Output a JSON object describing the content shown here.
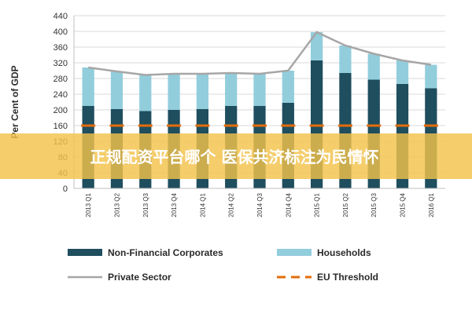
{
  "banner": {
    "text": "正规配资平台哪个 医保共济标注为民情怀"
  },
  "chart_data": {
    "type": "bar",
    "title": "",
    "xlabel": "",
    "ylabel": "Per Cent of GDP",
    "ylim": [
      0,
      440
    ],
    "yticks": [
      0,
      40,
      80,
      120,
      160,
      200,
      240,
      280,
      320,
      360,
      400,
      440
    ],
    "grid": true,
    "legend_position": "bottom",
    "stacked": true,
    "categories": [
      "2013 Q1",
      "2013 Q2",
      "2013 Q3",
      "2013 Q4",
      "2014 Q1",
      "2014 Q2",
      "2014 Q3",
      "2014 Q4",
      "2015 Q1",
      "2015 Q2",
      "2015 Q3",
      "2015 Q4",
      "2016 Q1"
    ],
    "series": [
      {
        "name": "Non-Financial Corporates",
        "kind": "bar",
        "color": "#1f4e5e",
        "values": [
          210,
          202,
          197,
          200,
          202,
          210,
          210,
          218,
          326,
          294,
          277,
          266,
          255
        ]
      },
      {
        "name": "Households",
        "kind": "bar",
        "color": "#92cddc",
        "values": [
          98,
          96,
          92,
          92,
          90,
          84,
          82,
          82,
          72,
          70,
          66,
          60,
          60
        ]
      },
      {
        "name": "Private Sector",
        "kind": "line",
        "color": "#a6a6a6",
        "values": [
          308,
          298,
          289,
          292,
          292,
          294,
          292,
          300,
          398,
          364,
          343,
          326,
          315
        ]
      },
      {
        "name": "EU Threshold",
        "kind": "dashed-line",
        "color": "#e46c0a",
        "values": [
          160,
          160,
          160,
          160,
          160,
          160,
          160,
          160,
          160,
          160,
          160,
          160,
          160
        ]
      }
    ]
  }
}
